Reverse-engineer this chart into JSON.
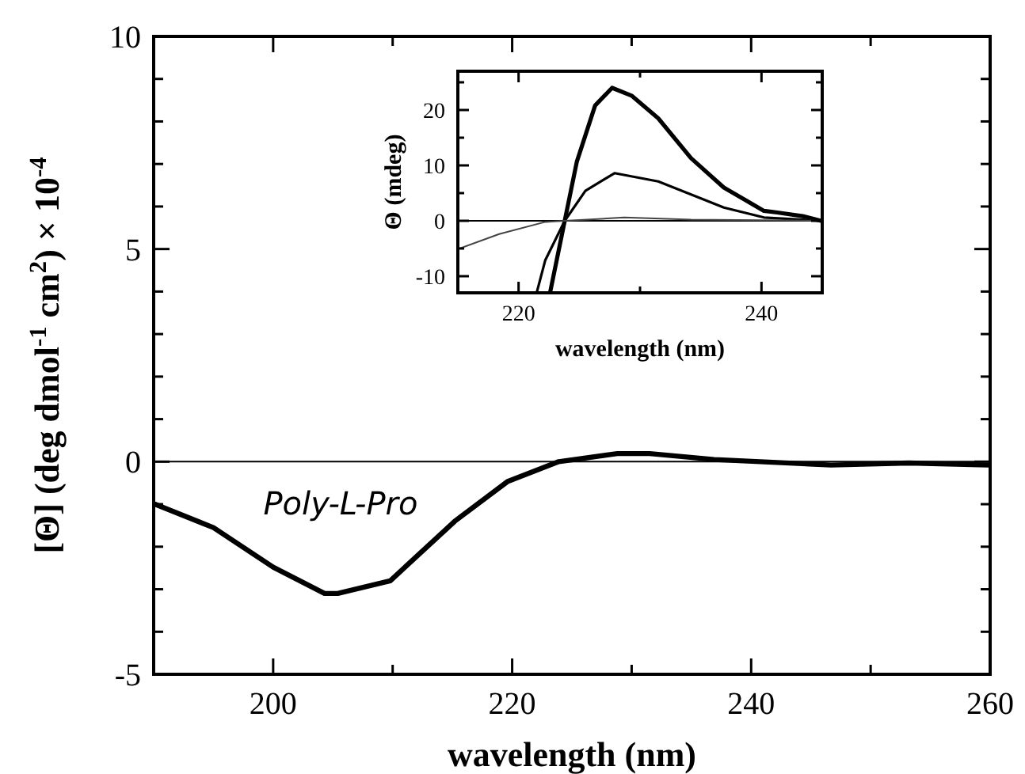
{
  "chart_data": [
    {
      "type": "line",
      "xlabel": "wavelength (nm)",
      "ylabel": "[Θ] (deg dmol$^{-1}$ cm$^{2}$) × 10$^{-4}$",
      "xlim": [
        190,
        260
      ],
      "ylim": [
        -5,
        10
      ],
      "xticks": [
        {
          "value": 190,
          "label": null
        },
        200,
        {
          "value": 210,
          "label": null
        },
        220,
        {
          "value": 230,
          "label": null
        },
        240,
        {
          "value": 250,
          "label": null
        },
        260
      ],
      "yticks": [
        -5,
        {
          "value": -4,
          "label": null
        },
        {
          "value": -3,
          "label": null
        },
        {
          "value": -2,
          "label": null
        },
        {
          "value": -1,
          "label": null
        },
        0,
        {
          "value": 1,
          "label": null
        },
        {
          "value": 2,
          "label": null
        },
        {
          "value": 3,
          "label": null
        },
        {
          "value": 4,
          "label": null
        },
        5,
        {
          "value": 6,
          "label": null
        },
        {
          "value": 7,
          "label": null
        },
        {
          "value": 8,
          "label": null
        },
        {
          "value": 9,
          "label": null
        },
        10
      ],
      "ref_lines": [
        {
          "axis": "y",
          "value": 0,
          "color": "#000000"
        }
      ],
      "annotations": [
        "Poly-L-Pro"
      ],
      "series": [
        {
          "color": "#000000",
          "x": [
            190.1,
            195,
            200,
            204.3,
            205.4,
            209.8,
            215.2,
            219.6,
            223.9,
            228.8,
            231.5,
            236.9,
            246.7,
            253.2,
            259.8
          ],
          "values": [
            -1.0,
            -1.55,
            -2.48,
            -3.1,
            -3.1,
            -2.8,
            -1.4,
            -0.47,
            0,
            0.19,
            0.19,
            0.05,
            -0.08,
            -0.03,
            -0.08
          ]
        }
      ]
    },
    {
      "type": "line",
      "xlabel": "wavelength (nm)",
      "ylabel": "Θ (mdeg)",
      "xlim": [
        215,
        245
      ],
      "ylim": [
        -13,
        27
      ],
      "xticks": [
        220,
        {
          "value": 230,
          "label": null
        },
        240
      ],
      "yticks": [
        -10,
        {
          "value": -5,
          "label": null
        },
        0,
        {
          "value": 5,
          "label": null
        },
        10,
        {
          "value": 15,
          "label": null
        },
        20,
        {
          "value": 25,
          "label": null
        }
      ],
      "ref_lines": [
        {
          "axis": "y",
          "value": 0,
          "color": "#000000"
        }
      ],
      "series": [
        {
          "color": "#000000",
          "x": [
            222.6,
            223.8,
            224.8,
            226.3,
            227.7,
            229.3,
            231.5,
            234.2,
            236.9,
            240.2,
            241.3,
            243.5,
            244.9
          ],
          "values": [
            -12.9,
            0,
            10.7,
            20.8,
            24,
            22.6,
            18.5,
            11.3,
            6,
            1.8,
            1.5,
            0.8,
            0
          ]
        },
        {
          "color": "#000000",
          "x": [
            221.5,
            222.2,
            223.8,
            225.5,
            227.9,
            231.5,
            236.9,
            240.2,
            244.9
          ],
          "values": [
            -12.9,
            -7.1,
            0,
            5.4,
            8.6,
            7.1,
            2.4,
            0.6,
            0
          ]
        },
        {
          "color": "#444444",
          "x": [
            215,
            218.4,
            222.2,
            223.8,
            228.7,
            234.2,
            244.9
          ],
          "values": [
            -5.1,
            -2.4,
            -0.2,
            0,
            0.6,
            0.2,
            0
          ]
        }
      ]
    }
  ]
}
